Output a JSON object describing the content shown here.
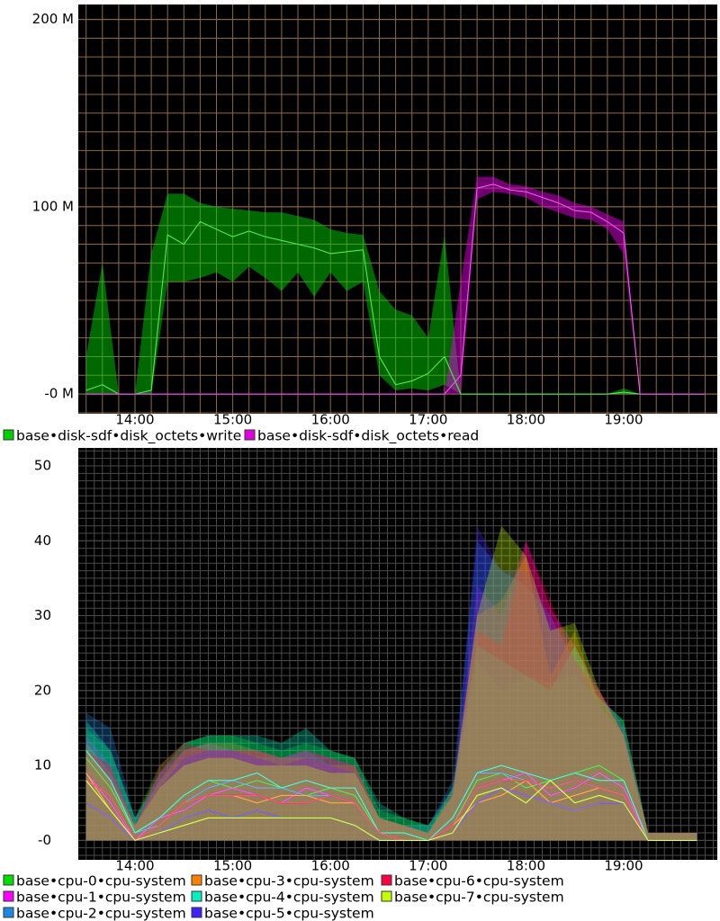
{
  "chart_data": [
    {
      "type": "line",
      "categories": [
        null,
        null,
        null,
        "14:00",
        null,
        null,
        null,
        null,
        null,
        "15:00",
        null,
        null,
        null,
        null,
        null,
        "16:00",
        null,
        null,
        null,
        null,
        null,
        "17:00",
        null,
        null,
        null,
        null,
        null,
        "18:00",
        null,
        null,
        null,
        null,
        null,
        "19:00",
        null,
        null,
        null,
        null,
        null
      ],
      "ylim": [
        -10.5,
        208
      ],
      "yticks": [
        {
          "value": 0,
          "label": "-0 M"
        },
        {
          "value": 100,
          "label": "100 M"
        },
        {
          "value": 200,
          "label": "200 M"
        }
      ],
      "grid": true,
      "series": [
        {
          "name": "base•disk-sdf•disk_octets•write",
          "color": "#00d000",
          "values": [
            2,
            5,
            0,
            0,
            2,
            85,
            80,
            92,
            88,
            84,
            87,
            84,
            82,
            80,
            78,
            75,
            76,
            77,
            20,
            5,
            7,
            11,
            20,
            0,
            0,
            0,
            0,
            0,
            0,
            0,
            0,
            0,
            0,
            1,
            0,
            0,
            0,
            0,
            0
          ],
          "max": [
            20,
            70,
            0,
            0,
            75,
            107,
            107,
            102,
            100,
            99,
            98,
            97,
            97,
            95,
            93,
            88,
            86,
            85,
            55,
            45,
            42,
            30,
            85,
            0,
            0,
            0,
            0,
            0,
            0,
            0,
            0,
            0,
            0,
            3,
            0,
            0,
            0,
            0,
            0
          ],
          "min": [
            0,
            0,
            0,
            0,
            0,
            60,
            60,
            62,
            65,
            60,
            68,
            62,
            55,
            65,
            52,
            65,
            55,
            60,
            10,
            2,
            3,
            2,
            5,
            0,
            0,
            0,
            0,
            0,
            0,
            0,
            0,
            0,
            0,
            0,
            0,
            0,
            0,
            0,
            0
          ]
        },
        {
          "name": "base•disk-sdf•disk_octets•read",
          "color": "#e000e0",
          "values": [
            0,
            0,
            0,
            0,
            0,
            0,
            0,
            0,
            0,
            0,
            0,
            0,
            0,
            0,
            0,
            0,
            0,
            0,
            0,
            0,
            0,
            0,
            0,
            10,
            110,
            112,
            109,
            108,
            105,
            102,
            98,
            97,
            92,
            86,
            0,
            0,
            0,
            0,
            0
          ],
          "max": [
            0,
            0,
            0,
            0,
            0,
            0,
            0,
            0,
            0,
            0,
            0,
            0,
            0,
            0,
            0,
            0,
            0,
            0,
            0,
            0,
            0,
            0,
            0,
            60,
            116,
            116,
            112,
            111,
            108,
            106,
            102,
            100,
            96,
            92,
            0,
            0,
            0,
            0,
            0
          ],
          "min": [
            0,
            0,
            0,
            0,
            0,
            0,
            0,
            0,
            0,
            0,
            0,
            0,
            0,
            0,
            0,
            0,
            0,
            0,
            0,
            0,
            0,
            0,
            0,
            0,
            104,
            108,
            107,
            105,
            100,
            97,
            94,
            93,
            88,
            75,
            0,
            0,
            0,
            0,
            0
          ]
        }
      ]
    },
    {
      "type": "line",
      "categories": [
        null,
        null,
        "14:00",
        null,
        null,
        null,
        "15:00",
        null,
        null,
        null,
        "16:00",
        null,
        null,
        null,
        "17:00",
        null,
        null,
        null,
        "18:00",
        null,
        null,
        null,
        "19:00",
        null,
        null,
        null
      ],
      "ylim": [
        -2.6,
        52.4
      ],
      "yticks": [
        {
          "value": 0,
          "label": "-0"
        },
        10,
        20,
        30,
        40,
        50
      ],
      "grid": true,
      "series": [
        {
          "name": "base•cpu-0•cpu-system",
          "color": "#00e000",
          "values": [
            11,
            7,
            1,
            3,
            6,
            8,
            7,
            8,
            7,
            6,
            7,
            6,
            1,
            1,
            0,
            2,
            8,
            9,
            7,
            8,
            9,
            10,
            8,
            0,
            0,
            0
          ],
          "max": [
            15,
            12,
            3,
            10,
            13,
            14,
            14,
            13,
            12,
            13,
            12,
            11,
            4,
            3,
            2,
            6,
            24,
            20,
            22,
            21,
            22,
            19,
            16,
            1,
            1,
            1
          ]
        },
        {
          "name": "base•cpu-1•cpu-system",
          "color": "#ff00ff",
          "values": [
            9,
            5,
            0,
            3,
            4,
            6,
            7,
            6,
            5,
            7,
            6,
            5,
            1,
            0,
            0,
            2,
            7,
            8,
            9,
            6,
            7,
            9,
            7,
            0,
            0,
            0
          ],
          "max": [
            14,
            10,
            2,
            9,
            12,
            13,
            12,
            12,
            11,
            12,
            11,
            10,
            3,
            2,
            1,
            6,
            34,
            30,
            40,
            31,
            26,
            20,
            15,
            1,
            1,
            1
          ]
        },
        {
          "name": "base•cpu-2•cpu-system",
          "color": "#1e88e5",
          "values": [
            12,
            8,
            1,
            2,
            5,
            7,
            8,
            7,
            7,
            6,
            6,
            5,
            1,
            0,
            0,
            3,
            9,
            9,
            8,
            7,
            8,
            7,
            6,
            0,
            0,
            0
          ],
          "max": [
            17,
            15,
            3,
            8,
            11,
            12,
            12,
            11,
            11,
            12,
            10,
            9,
            3,
            2,
            2,
            8,
            40,
            36,
            34,
            30,
            24,
            18,
            14,
            1,
            1,
            1
          ]
        },
        {
          "name": "base•cpu-3•cpu-system",
          "color": "#ff8000",
          "values": [
            9,
            4,
            0,
            2,
            5,
            6,
            6,
            5,
            6,
            6,
            5,
            5,
            1,
            0,
            0,
            2,
            5,
            6,
            8,
            5,
            6,
            7,
            6,
            0,
            0,
            0
          ],
          "max": [
            13,
            9,
            2,
            8,
            12,
            13,
            13,
            12,
            11,
            11,
            10,
            10,
            3,
            2,
            1,
            7,
            30,
            32,
            38,
            22,
            28,
            18,
            14,
            1,
            1,
            1
          ]
        },
        {
          "name": "base•cpu-4•cpu-system",
          "color": "#00f0c0",
          "values": [
            12,
            8,
            1,
            3,
            6,
            8,
            8,
            9,
            7,
            8,
            7,
            7,
            1,
            1,
            0,
            3,
            9,
            10,
            9,
            8,
            9,
            8,
            8,
            0,
            0,
            0
          ],
          "max": [
            16,
            12,
            3,
            9,
            13,
            14,
            14,
            14,
            13,
            15,
            12,
            11,
            5,
            3,
            2,
            7,
            26,
            24,
            22,
            20,
            26,
            19,
            16,
            1,
            1,
            1
          ]
        },
        {
          "name": "base•cpu-5•cpu-system",
          "color": "#4020ff",
          "values": [
            5,
            3,
            0,
            1,
            3,
            4,
            3,
            4,
            3,
            3,
            3,
            2,
            0,
            0,
            0,
            1,
            5,
            7,
            6,
            5,
            4,
            5,
            5,
            0,
            0,
            0
          ],
          "max": [
            12,
            8,
            2,
            7,
            11,
            12,
            12,
            11,
            10,
            11,
            10,
            9,
            3,
            2,
            1,
            6,
            42,
            36,
            36,
            30,
            24,
            18,
            14,
            1,
            1,
            1
          ]
        },
        {
          "name": "base•cpu-6•cpu-system",
          "color": "#ff0040",
          "values": [
            8,
            6,
            0,
            2,
            5,
            6,
            6,
            6,
            5,
            5,
            6,
            5,
            1,
            0,
            0,
            2,
            7,
            8,
            8,
            7,
            8,
            7,
            6,
            0,
            0,
            0
          ],
          "max": [
            12,
            10,
            2,
            10,
            13,
            12,
            12,
            12,
            11,
            12,
            11,
            10,
            3,
            2,
            1,
            6,
            28,
            26,
            40,
            32,
            24,
            20,
            14,
            1,
            1,
            1
          ]
        },
        {
          "name": "base•cpu-7•cpu-system",
          "color": "#c0ff00",
          "values": [
            8,
            4,
            0,
            1,
            2,
            3,
            3,
            3,
            3,
            3,
            3,
            2,
            0,
            0,
            0,
            1,
            6,
            7,
            5,
            8,
            5,
            6,
            5,
            0,
            0,
            0
          ],
          "max": [
            12,
            8,
            2,
            7,
            10,
            11,
            11,
            10,
            10,
            10,
            9,
            9,
            3,
            2,
            1,
            6,
            30,
            42,
            38,
            28,
            29,
            20,
            14,
            1,
            1,
            1
          ]
        }
      ]
    }
  ]
}
